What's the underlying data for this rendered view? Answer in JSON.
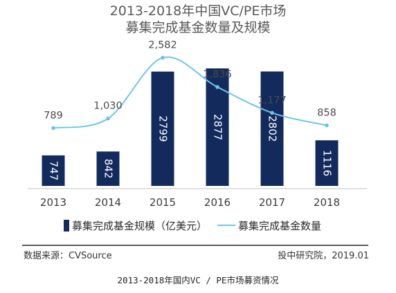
{
  "chart_data": {
    "type": "bar",
    "title": [
      "2013-2018年中国VC/PE市场",
      "募集完成基金数量及规模"
    ],
    "categories": [
      "2013",
      "2014",
      "2015",
      "2016",
      "2017",
      "2018"
    ],
    "series": [
      {
        "name": "募集完成基金规模（亿美元）",
        "type": "bar",
        "color": "#132a5c",
        "values": [
          747,
          842,
          2799,
          2877,
          2802,
          1116
        ],
        "labels": [
          "747",
          "842",
          "2799",
          "2877",
          "2802",
          "1116"
        ]
      },
      {
        "name": "募集完成基金数量",
        "type": "line",
        "color": "#6cc5ea",
        "values": [
          789,
          1030,
          2582,
          1836,
          1177,
          858
        ],
        "labels": [
          "789",
          "1,030",
          "2,582",
          "1,836",
          "1,177",
          "858"
        ]
      }
    ],
    "legend_position": "bottom",
    "grid": false
  },
  "source": "数据来源：CVSource",
  "credit": "投中研究院，2019.01",
  "caption": "2013-2018年国内VC / PE市场募资情况",
  "colors": {
    "bar": "#132a5c",
    "line": "#6cc5ea",
    "axis": "#bfbfbf",
    "rule": "#222222"
  }
}
